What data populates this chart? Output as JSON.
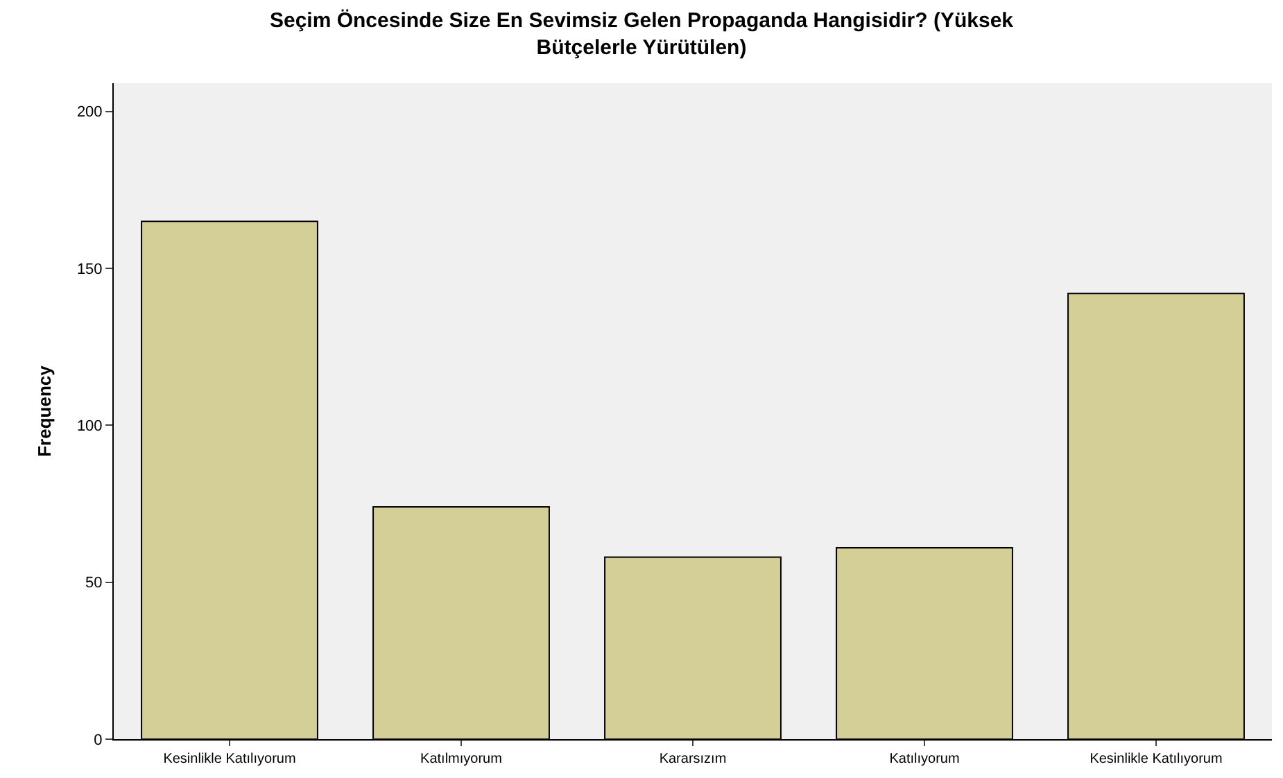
{
  "chart_data": {
    "type": "bar",
    "title": "Seçim Öncesinde Size En Sevimsiz Gelen Propaganda Hangisidir? (Yüksek\nBütçelerle Yürütülen)",
    "ylabel": "Frequency",
    "categories": [
      "Kesinlikle Katılıyorum",
      "Katılmıyorum",
      "Kararsızım",
      "Katılıyorum",
      "Kesinlikle Katılıyorum"
    ],
    "values": [
      165,
      74,
      58,
      61,
      142
    ],
    "color": "#d4cf97",
    "ylim": [
      0,
      209
    ],
    "yticks": [
      0,
      50,
      100,
      150,
      200
    ],
    "grid": false
  }
}
